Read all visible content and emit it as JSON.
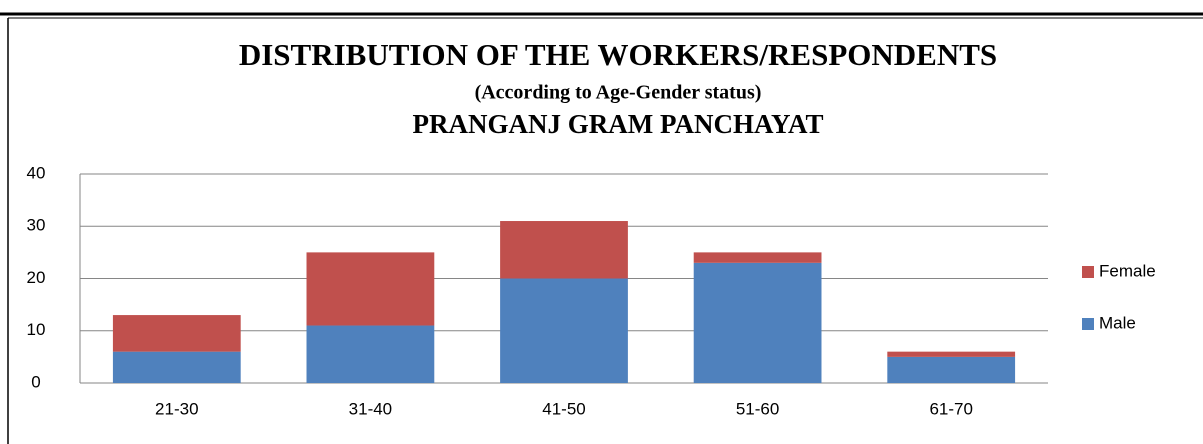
{
  "chart_data": {
    "type": "bar",
    "stacked": true,
    "title": "DISTRIBUTION OF THE WORKERS/RESPONDENTS",
    "subtitle": "(According to Age-Gender status)",
    "subtitle2": "PRANGANJ GRAM PANCHAYAT",
    "categories": [
      "21-30",
      "31-40",
      "41-50",
      "51-60",
      "61-70"
    ],
    "series": [
      {
        "name": "Male",
        "color": "#4f81bd",
        "values": [
          6,
          11,
          20,
          23,
          5
        ]
      },
      {
        "name": "Female",
        "color": "#c0504d",
        "values": [
          7,
          14,
          11,
          2,
          1
        ]
      }
    ],
    "ylim": [
      0,
      40
    ],
    "yticks": [
      0,
      10,
      20,
      30,
      40
    ],
    "grid": true,
    "legend": "right"
  }
}
